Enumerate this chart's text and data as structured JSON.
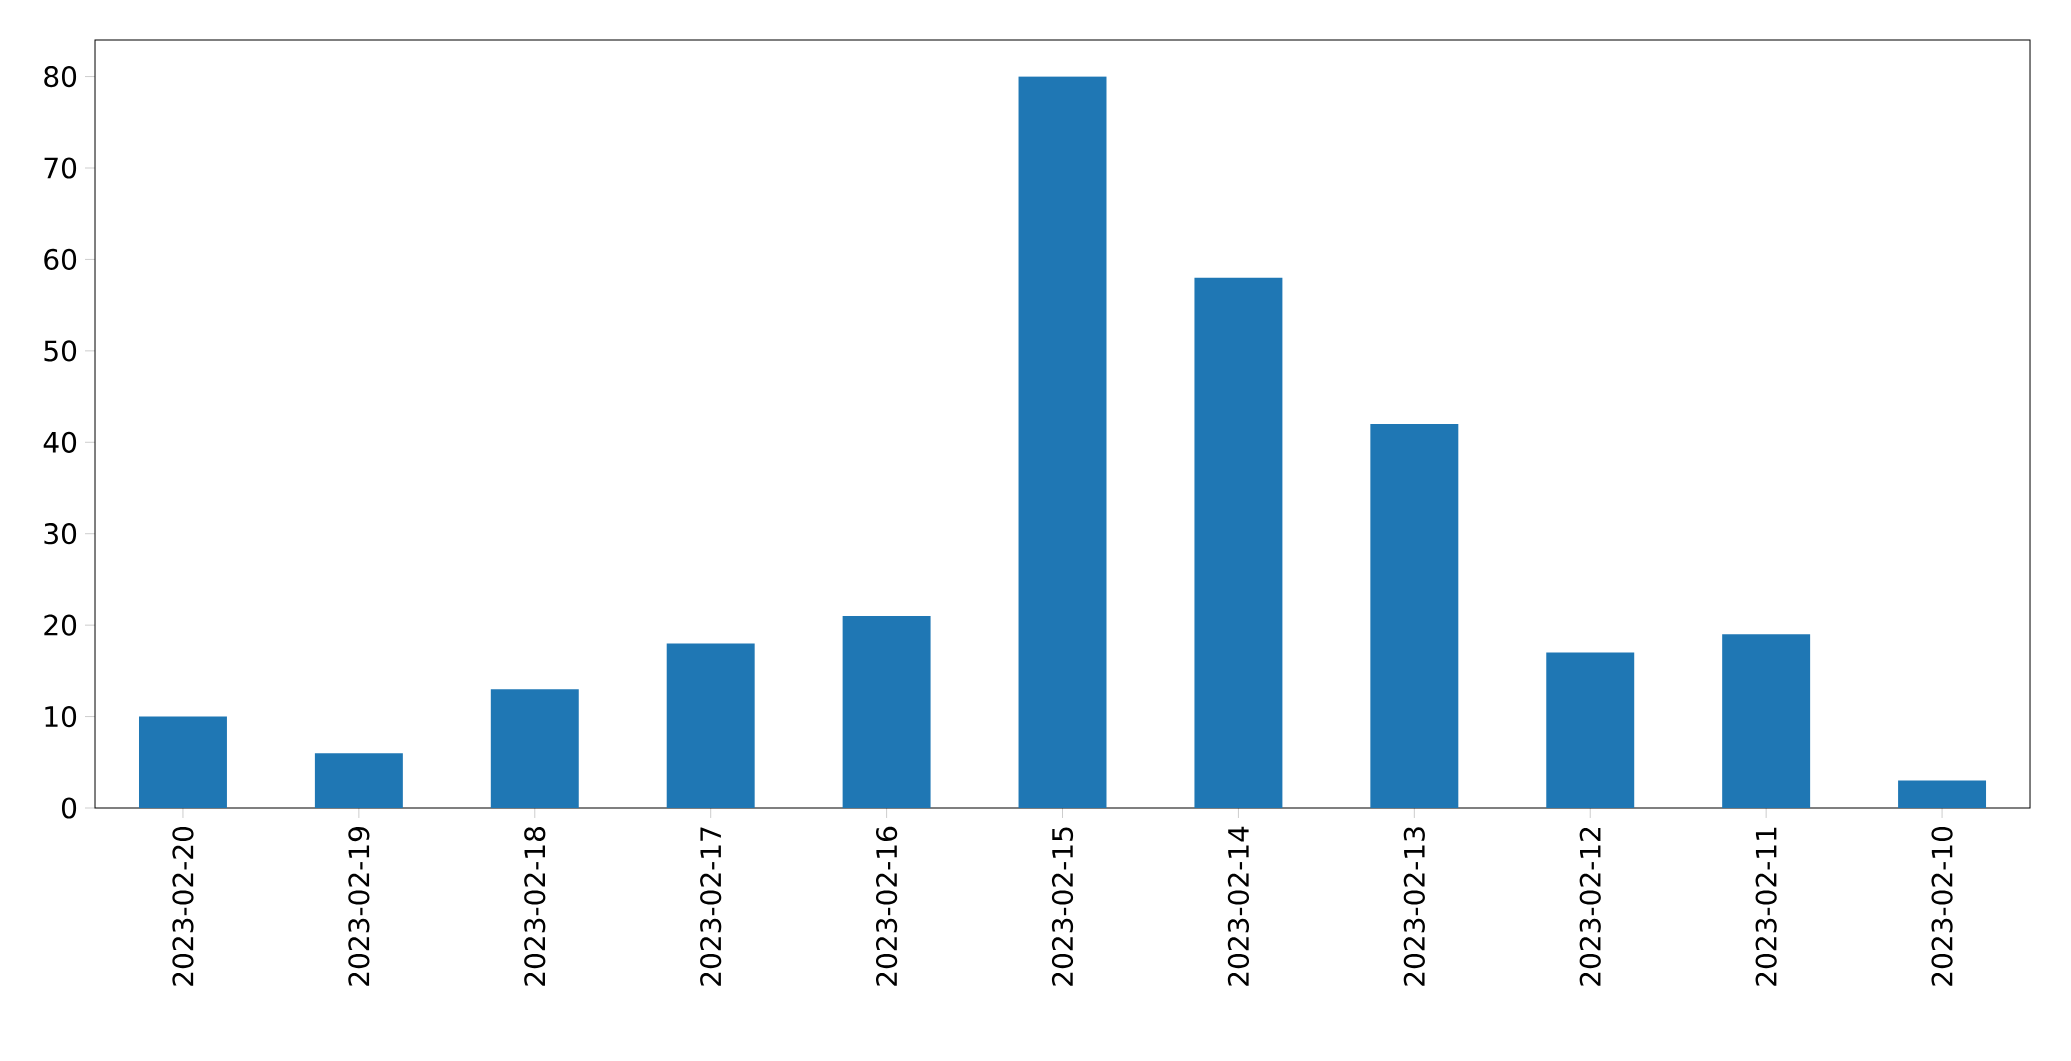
{
  "chart_data": {
    "type": "bar",
    "categories": [
      "2023-02-20",
      "2023-02-19",
      "2023-02-18",
      "2023-02-17",
      "2023-02-16",
      "2023-02-15",
      "2023-02-14",
      "2023-02-13",
      "2023-02-12",
      "2023-02-11",
      "2023-02-10"
    ],
    "values": [
      10,
      6,
      13,
      18,
      21,
      80,
      58,
      42,
      17,
      19,
      3
    ],
    "color": "#1f77b4",
    "ylim": [
      0,
      84
    ],
    "yticks": [
      0,
      10,
      20,
      30,
      40,
      50,
      60,
      70,
      80
    ]
  }
}
